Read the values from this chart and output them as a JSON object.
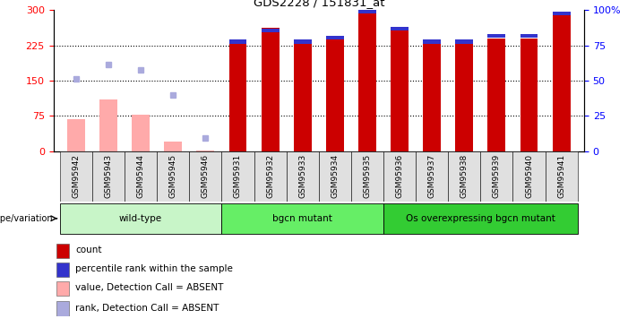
{
  "title": "GDS2228 / 151831_at",
  "samples": [
    "GSM95942",
    "GSM95943",
    "GSM95944",
    "GSM95945",
    "GSM95946",
    "GSM95931",
    "GSM95932",
    "GSM95933",
    "GSM95934",
    "GSM95935",
    "GSM95936",
    "GSM95937",
    "GSM95938",
    "GSM95939",
    "GSM95940",
    "GSM95941"
  ],
  "count_values": [
    null,
    null,
    null,
    null,
    null,
    230,
    262,
    230,
    237,
    298,
    258,
    230,
    230,
    240,
    240,
    297
  ],
  "rank_values": [
    null,
    null,
    null,
    null,
    null,
    79,
    87,
    79,
    82,
    100,
    88,
    79,
    79,
    83,
    83,
    99
  ],
  "absent_count": [
    68,
    110,
    78,
    20,
    2,
    null,
    null,
    null,
    null,
    null,
    null,
    null,
    null,
    null,
    null,
    null
  ],
  "absent_rank": [
    153,
    185,
    173,
    120,
    28,
    null,
    null,
    null,
    null,
    null,
    null,
    null,
    null,
    null,
    null,
    null
  ],
  "groups": [
    {
      "label": "wild-type",
      "start": 0,
      "end": 5,
      "color": "#c8f5c8"
    },
    {
      "label": "bgcn mutant",
      "start": 5,
      "end": 10,
      "color": "#66ee66"
    },
    {
      "label": "Os overexpressing bgcn mutant",
      "start": 10,
      "end": 16,
      "color": "#33cc33"
    }
  ],
  "ylim_left": [
    0,
    300
  ],
  "ylim_right": [
    0,
    100
  ],
  "yticks_left": [
    0,
    75,
    150,
    225,
    300
  ],
  "yticks_right": [
    0,
    25,
    50,
    75,
    100
  ],
  "count_color": "#cc0000",
  "rank_color": "#3333cc",
  "absent_count_color": "#ffaaaa",
  "absent_rank_color": "#aaaadd",
  "bg_color": "#ffffff",
  "legend_items": [
    {
      "label": "count",
      "color": "#cc0000"
    },
    {
      "label": "percentile rank within the sample",
      "color": "#3333cc"
    },
    {
      "label": "value, Detection Call = ABSENT",
      "color": "#ffaaaa"
    },
    {
      "label": "rank, Detection Call = ABSENT",
      "color": "#aaaadd"
    }
  ]
}
